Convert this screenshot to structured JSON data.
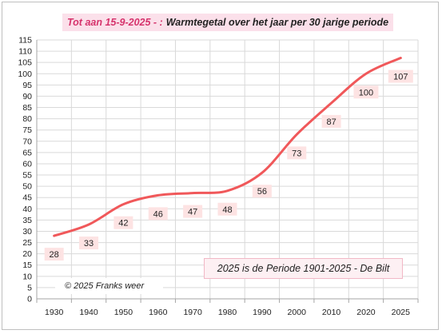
{
  "chart_data": {
    "type": "line",
    "title_prefix": "Tot aan 15-9-2025 - :",
    "title": "Warmtegetal over het jaar per 30 jarige periode",
    "annotation": "2025 is de Periode 1901-2025 -  De Bilt",
    "credit": "© 2025 Franks weer",
    "x": [
      1930,
      1940,
      1950,
      1960,
      1970,
      1980,
      1990,
      2000,
      2010,
      2020,
      2025
    ],
    "y": [
      28,
      33,
      42,
      46,
      47,
      48,
      56,
      73,
      87,
      100,
      107
    ],
    "x_ticks": [
      "1930",
      "1940",
      "1950",
      "1960",
      "1970",
      "1980",
      "1990",
      "2000",
      "2010",
      "2020",
      "2025"
    ],
    "ylim": [
      0,
      115
    ],
    "y_step": 5,
    "grid": true,
    "line_color": "#f0585a",
    "label_bg": "#fde3e3"
  }
}
